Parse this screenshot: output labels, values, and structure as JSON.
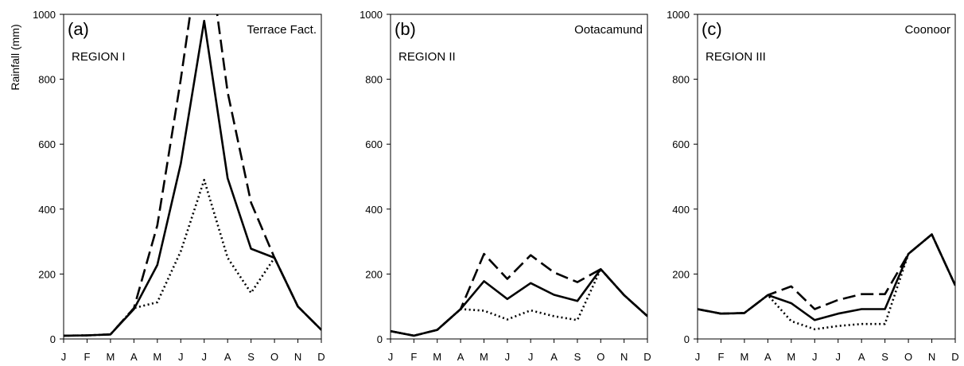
{
  "y_axis_label": "Rainfall (mm)",
  "chart_data": [
    {
      "type": "line",
      "panel_label": "(a)",
      "region": "REGION I",
      "station": "Terrace Fact.",
      "categories": [
        "J",
        "F",
        "M",
        "A",
        "M",
        "J",
        "J",
        "A",
        "S",
        "O",
        "N",
        "D"
      ],
      "ylim": [
        0,
        1000
      ],
      "yticks": [
        0,
        200,
        400,
        600,
        800,
        1000
      ],
      "series": [
        {
          "style": "dashed",
          "values": [
            10,
            11,
            14,
            95,
            350,
            800,
            1300,
            760,
            420,
            250,
            100,
            28
          ]
        },
        {
          "style": "solid",
          "values": [
            10,
            11,
            14,
            92,
            228,
            540,
            980,
            495,
            278,
            250,
            100,
            28
          ]
        },
        {
          "style": "dotted",
          "values": [
            10,
            11,
            14,
            95,
            113,
            270,
            490,
            250,
            142,
            250,
            100,
            28
          ]
        }
      ]
    },
    {
      "type": "line",
      "panel_label": "(b)",
      "region": "REGION II",
      "station": "Ootacamund",
      "categories": [
        "J",
        "F",
        "M",
        "A",
        "M",
        "J",
        "J",
        "A",
        "S",
        "O",
        "N",
        "D"
      ],
      "ylim": [
        0,
        1000
      ],
      "yticks": [
        0,
        200,
        400,
        600,
        800,
        1000
      ],
      "series": [
        {
          "style": "dashed",
          "values": [
            24,
            10,
            28,
            92,
            262,
            185,
            258,
            205,
            175,
            215,
            135,
            70
          ]
        },
        {
          "style": "solid",
          "values": [
            24,
            10,
            28,
            92,
            178,
            123,
            172,
            136,
            117,
            215,
            135,
            70
          ]
        },
        {
          "style": "dotted",
          "values": [
            24,
            10,
            28,
            92,
            87,
            60,
            88,
            70,
            58,
            215,
            135,
            70
          ]
        }
      ]
    },
    {
      "type": "line",
      "panel_label": "(c)",
      "region": "REGION III",
      "station": "Coonoor",
      "categories": [
        "J",
        "F",
        "M",
        "A",
        "M",
        "J",
        "J",
        "A",
        "S",
        "O",
        "N",
        "D"
      ],
      "ylim": [
        0,
        1000
      ],
      "yticks": [
        0,
        200,
        400,
        600,
        800,
        1000
      ],
      "series": [
        {
          "style": "dashed",
          "values": [
            92,
            78,
            80,
            135,
            162,
            92,
            120,
            138,
            138,
            262,
            322,
            165
          ]
        },
        {
          "style": "solid",
          "values": [
            92,
            78,
            80,
            135,
            110,
            58,
            78,
            92,
            92,
            262,
            322,
            165
          ]
        },
        {
          "style": "dotted",
          "values": [
            92,
            78,
            80,
            135,
            55,
            30,
            40,
            46,
            46,
            262,
            322,
            165
          ]
        }
      ]
    }
  ]
}
